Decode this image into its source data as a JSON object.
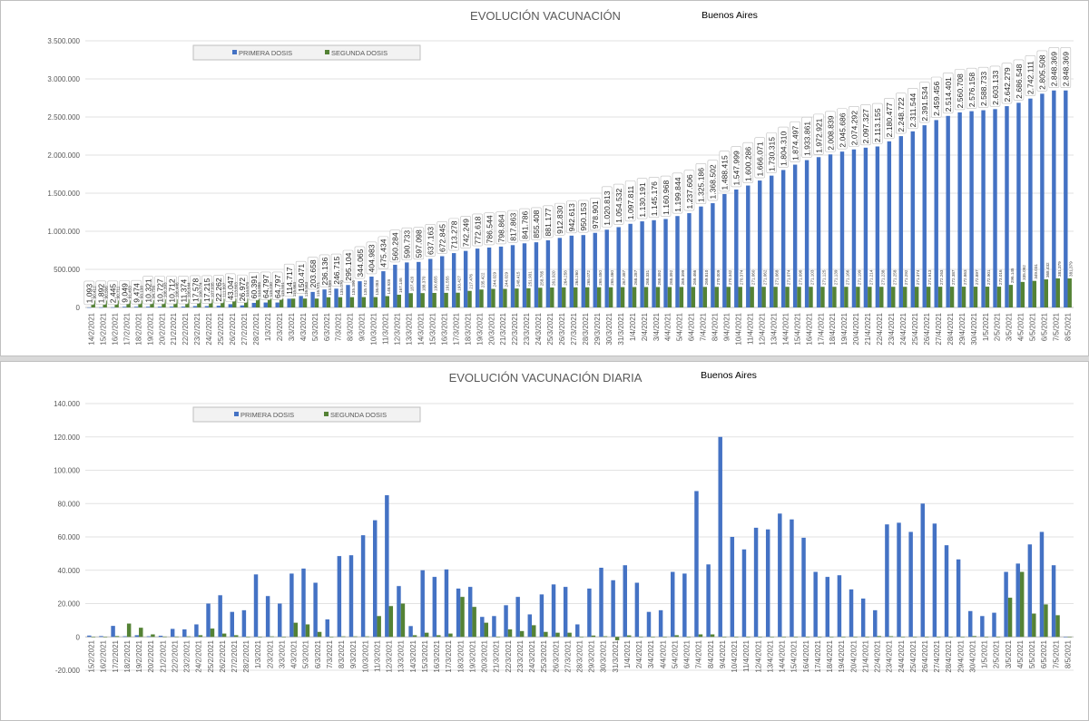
{
  "colors": {
    "primera": "#4472C4",
    "segunda": "#548235",
    "grid": "#e2e2e2",
    "axis": "#595959"
  },
  "chart_data": [
    {
      "type": "bar",
      "title": "EVOLUCIÓN VACUNACIÓN",
      "subtitle": "Buenos Aires",
      "legend_position": "top-left",
      "ylim": [
        0,
        3500000
      ],
      "yticks": [
        0,
        500000,
        1000000,
        1500000,
        2000000,
        2500000,
        3000000,
        3500000
      ],
      "ytick_labels": [
        "0",
        "500.000",
        "1.000.000",
        "1.500.000",
        "2.000.000",
        "2.500.000",
        "3.000.000",
        "3.500.000"
      ],
      "grid": true,
      "categories": [
        "14/2/2021",
        "15/2/2021",
        "16/2/2021",
        "17/2/2021",
        "18/2/2021",
        "19/2/2021",
        "20/2/2021",
        "21/2/2021",
        "22/2/2021",
        "23/2/2021",
        "24/2/2021",
        "25/2/2021",
        "26/2/2021",
        "27/2/2021",
        "28/2/2021",
        "1/3/2021",
        "2/3/2021",
        "3/3/2021",
        "4/3/2021",
        "5/3/2021",
        "6/3/2021",
        "7/3/2021",
        "8/3/2021",
        "9/3/2021",
        "10/3/2021",
        "11/3/2021",
        "12/3/2021",
        "13/3/2021",
        "14/3/2021",
        "15/3/2021",
        "16/3/2021",
        "17/3/2021",
        "18/3/2021",
        "19/3/2021",
        "20/3/2021",
        "21/3/2021",
        "22/3/2021",
        "23/3/2021",
        "24/3/2021",
        "25/3/2021",
        "26/3/2021",
        "27/3/2021",
        "28/3/2021",
        "29/3/2021",
        "30/3/2021",
        "31/3/2021",
        "1/4/2021",
        "2/4/2021",
        "3/4/2021",
        "4/4/2021",
        "5/4/2021",
        "6/4/2021",
        "7/4/2021",
        "8/4/2021",
        "9/4/2021",
        "10/4/2021",
        "11/4/2021",
        "12/4/2021",
        "13/4/2021",
        "14/4/2021",
        "15/4/2021",
        "16/4/2021",
        "17/4/2021",
        "18/4/2021",
        "19/4/2021",
        "20/4/2021",
        "21/4/2021",
        "22/4/2021",
        "23/4/2021",
        "24/4/2021",
        "25/4/2021",
        "26/4/2021",
        "27/4/2021",
        "28/4/2021",
        "29/4/2021",
        "30/4/2021",
        "1/5/2021",
        "2/5/2021",
        "3/5/2021",
        "4/5/2021",
        "5/5/2021",
        "6/5/2021",
        "7/5/2021",
        "8/5/2021"
      ],
      "series": [
        {
          "name": "PRIMERA DOSIS",
          "values": [
            1093,
            1892,
            2445,
            9049,
            9474,
            10321,
            10727,
            10712,
            11374,
            17578,
            17215,
            22262,
            43047,
            26972,
            60391,
            64797,
            64797,
            114717,
            150471,
            203658,
            236136,
            246715,
            295104,
            344065,
            404983,
            475434,
            560284,
            590733,
            597098,
            637163,
            672845,
            713278,
            742249,
            772618,
            786544,
            798864,
            817863,
            841786,
            855408,
            881177,
            912830,
            942613,
            950153,
            978901,
            1020813,
            1054532,
            1097811,
            1130191,
            1145176,
            1160968,
            1199844,
            1237606,
            1325186,
            1368502,
            1488415,
            1547999,
            1600286,
            1666071,
            1730315,
            1804310,
            1874497,
            1933861,
            1972921,
            2008839,
            2045686,
            2074292,
            2097327,
            2113155,
            2180477,
            2248722,
            2311544,
            2391534,
            2459456,
            2514401,
            2560708,
            2576158,
            2588733,
            2603133,
            2642279,
            2686548,
            2742111,
            2805508,
            2848369,
            2848369
          ],
          "labels": [
            "1.093",
            "1.892",
            "2.445",
            "9.049",
            "9.474",
            "10.321",
            "10.727",
            "10.712",
            "11.374",
            "17.578",
            "17.215",
            "22.262",
            "43.047",
            "26.972",
            "60.391",
            "64.797",
            "64.797",
            "114.717",
            "150.471",
            "203.658",
            "236.136",
            "246.715",
            "295.104",
            "344.065",
            "404.983",
            "475.434",
            "560.284",
            "590.733",
            "597.098",
            "637.163",
            "672.845",
            "713.278",
            "742.249",
            "772.618",
            "786.544",
            "798.864",
            "817.863",
            "841.786",
            "855.408",
            "881.177",
            "912.830",
            "942.613",
            "950.153",
            "978.901",
            "1.020.813",
            "1.054.532",
            "1.097.811",
            "1.130.191",
            "1.145.176",
            "1.160.968",
            "1.199.844",
            "1.237.606",
            "1.325.186",
            "1.368.502",
            "1.488.415",
            "1.547.999",
            "1.600.286",
            "1.666.071",
            "1.730.315",
            "1.804.310",
            "1.874.497",
            "1.933.861",
            "1.972.921",
            "2.008.839",
            "2.045.686",
            "2.074.292",
            "2.097.327",
            "2.113.155",
            "2.180.477",
            "2.248.722",
            "2.311.544",
            "2.391.534",
            "2.459.456",
            "2.514.401",
            "2.560.708",
            "2.576.158",
            "2.588.733",
            "2.603.133",
            "2.642.279",
            "2.686.548",
            "2.742.111",
            "2.805.508",
            "2.848.369",
            "2.848.369"
          ]
        },
        {
          "name": "SEGUNDA DOSIS",
          "values": [
            90412,
            90566,
            90711,
            91453,
            93138,
            94756,
            106393,
            106446,
            106644,
            106774,
            107035,
            111897,
            113803,
            114878,
            114886,
            115230,
            115551,
            115663,
            116563,
            116571,
            133859,
            135070,
            135396,
            135742,
            136083,
            148928,
            167146,
            187420,
            188370,
            190655,
            191555,
            193427,
            217476,
            235422,
            244029,
            244029,
            248415,
            251931,
            258785,
            261920,
            264258,
            264260,
            265072,
            265450,
            265460,
            267387,
            268287,
            268331,
            268392,
            268392,
            269399,
            269466,
            269810,
            270009,
            270342,
            270374,
            271060,
            271062,
            271068,
            271074,
            271098,
            271103,
            271125,
            271139,
            271166,
            271199,
            271214,
            271238,
            271258,
            271292,
            271374,
            271913,
            272263,
            272387,
            272863,
            272897,
            272901,
            273016,
            296145,
            335092,
            349031,
            368432,
            381379,
            381379
          ],
          "labels": [
            "90.412",
            "90.566",
            "90.711",
            "91.453",
            "93.138",
            "94.756",
            "106.393",
            "106.446",
            "106.644",
            "106.774",
            "107.035",
            "111.897",
            "113.803",
            "114.878",
            "114.886",
            "115.230",
            "115.551",
            "115.663",
            "116.563",
            "116.571",
            "133.859",
            "135.070",
            "135.396",
            "135.742",
            "136.083",
            "148.928",
            "167.146",
            "187.420",
            "188.370",
            "190.655",
            "191.555",
            "193.427",
            "217.476",
            "235.422",
            "244.029",
            "244.029",
            "248.415",
            "251.931",
            "258.785",
            "261.920",
            "264.258",
            "264.260",
            "265.072",
            "265.450",
            "265.460",
            "267.387",
            "268.287",
            "268.331",
            "268.392",
            "268.392",
            "269.399",
            "269.466",
            "269.810",
            "270.009",
            "270.342",
            "270.374",
            "271.060",
            "271.062",
            "271.068",
            "271.074",
            "271.098",
            "271.103",
            "271.125",
            "271.139",
            "271.166",
            "271.199",
            "271.214",
            "271.238",
            "271.258",
            "271.292",
            "271.374",
            "271.913",
            "272.263",
            "272.387",
            "272.863",
            "272.897",
            "272.901",
            "273.016",
            "296.145",
            "335.092",
            "349.031",
            "368.432",
            "381.379",
            "381.379"
          ]
        }
      ]
    },
    {
      "type": "bar",
      "title": "EVOLUCIÓN VACUNACIÓN DIARIA",
      "subtitle": "Buenos Aires",
      "legend_position": "top-left",
      "ylim": [
        -20000,
        140000
      ],
      "yticks": [
        -20000,
        0,
        20000,
        40000,
        60000,
        80000,
        100000,
        120000,
        140000
      ],
      "ytick_labels": [
        "-20.000",
        "0",
        "20.000",
        "40.000",
        "60.000",
        "80.000",
        "100.000",
        "120.000",
        "140.000"
      ],
      "grid": true,
      "categories": [
        "15/2/2021",
        "16/2/2021",
        "17/2/2021",
        "18/2/2021",
        "19/2/2021",
        "20/2/2021",
        "21/2/2021",
        "22/2/2021",
        "23/2/2021",
        "24/2/2021",
        "25/2/2021",
        "26/2/2021",
        "27/2/2021",
        "28/2/2021",
        "1/3/2021",
        "2/3/2021",
        "3/3/2021",
        "4/3/2021",
        "5/3/2021",
        "6/3/2021",
        "7/3/2021",
        "8/3/2021",
        "9/3/2021",
        "10/3/2021",
        "11/3/2021",
        "12/3/2021",
        "13/3/2021",
        "14/3/2021",
        "15/3/2021",
        "16/3/2021",
        "17/3/2021",
        "18/3/2021",
        "19/3/2021",
        "20/3/2021",
        "21/3/2021",
        "22/3/2021",
        "23/3/2021",
        "24/3/2021",
        "25/3/2021",
        "26/3/2021",
        "27/3/2021",
        "28/3/2021",
        "29/3/2021",
        "30/3/2021",
        "31/3/2021",
        "1/4/2021",
        "2/4/2021",
        "3/4/2021",
        "4/4/2021",
        "5/4/2021",
        "6/4/2021",
        "7/4/2021",
        "8/4/2021",
        "9/4/2021",
        "10/4/2021",
        "11/4/2021",
        "12/4/2021",
        "13/4/2021",
        "14/4/2021",
        "15/4/2021",
        "16/4/2021",
        "17/4/2021",
        "18/4/2021",
        "19/4/2021",
        "20/4/2021",
        "21/4/2021",
        "22/4/2021",
        "23/4/2021",
        "24/4/2021",
        "25/4/2021",
        "26/4/2021",
        "27/4/2021",
        "28/4/2021",
        "29/4/2021",
        "30/4/2021",
        "1/5/2021",
        "2/5/2021",
        "3/5/2021",
        "4/5/2021",
        "5/5/2021",
        "6/5/2021",
        "7/5/2021",
        "8/5/2021"
      ],
      "series": [
        {
          "name": "PRIMERA DOSIS",
          "values": [
            800,
            500,
            6600,
            400,
            1000,
            400,
            700,
            4800,
            4500,
            7500,
            20000,
            25000,
            15000,
            16000,
            37500,
            24500,
            20000,
            38000,
            41000,
            32500,
            10500,
            48500,
            49000,
            61000,
            70000,
            85000,
            30500,
            6500,
            40000,
            36000,
            40500,
            29000,
            30000,
            12000,
            12500,
            19000,
            24000,
            13500,
            25500,
            31500,
            30000,
            7500,
            29000,
            41500,
            34000,
            43000,
            32500,
            15000,
            16000,
            39000,
            38000,
            87500,
            43500,
            120000,
            60000,
            52500,
            65500,
            64500,
            74000,
            70500,
            59500,
            39000,
            36000,
            37000,
            28500,
            23000,
            16000,
            67500,
            68500,
            63000,
            80000,
            68000,
            55000,
            46500,
            15500,
            12500,
            14500,
            39000,
            44000,
            55500,
            63000,
            43000,
            0
          ],
          "labels": []
        },
        {
          "name": "SEGUNDA DOSIS",
          "values": [
            100,
            100,
            500,
            8000,
            5500,
            1500,
            200,
            200,
            300,
            1000,
            5000,
            2000,
            1000,
            100,
            100,
            300,
            100,
            8500,
            7500,
            3000,
            100,
            300,
            300,
            300,
            12500,
            18500,
            20000,
            1000,
            2500,
            1000,
            2000,
            24000,
            18000,
            8500,
            100,
            4500,
            3500,
            7000,
            3000,
            2500,
            2500,
            100,
            800,
            400,
            -2000,
            900,
            100,
            100,
            100,
            1000,
            100,
            1500,
            1500,
            100,
            100,
            100,
            100,
            100,
            100,
            100,
            100,
            100,
            100,
            100,
            100,
            100,
            500,
            400,
            100,
            100,
            100,
            100,
            100,
            100,
            500,
            100,
            100,
            23500,
            39000,
            14000,
            19500,
            13000,
            0
          ],
          "labels": []
        }
      ]
    }
  ]
}
